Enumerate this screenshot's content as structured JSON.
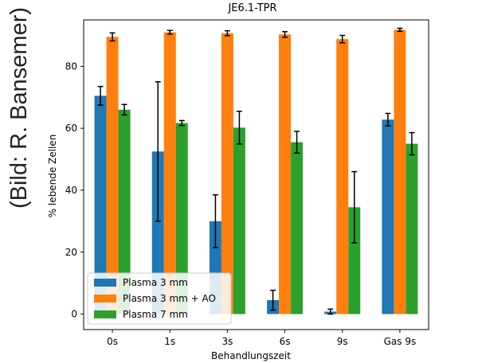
{
  "photo_credit": "(Bild: R. Bansemer)",
  "chart_data": {
    "type": "bar",
    "title": "JE6.1-TPR",
    "xlabel": "Behandlungszeit",
    "ylabel": "% lebende Zellen",
    "categories": [
      "0s",
      "1s",
      "3s",
      "6s",
      "9s",
      "Gas 9s"
    ],
    "ylim": [
      -5,
      95
    ],
    "yticks": [
      0,
      20,
      40,
      60,
      80
    ],
    "legend_position": "lower-left",
    "series": [
      {
        "name": "Plasma 3 mm",
        "color": "#1f77b4",
        "values": [
          70.5,
          52.5,
          30,
          4.5,
          0.8,
          62.8
        ],
        "errors": [
          3,
          22.5,
          8.5,
          3.2,
          0.8,
          2
        ]
      },
      {
        "name": "Plasma 3 mm + AO",
        "color": "#ff7f0e",
        "values": [
          89.5,
          91,
          90.7,
          90.3,
          88.8,
          91.8
        ],
        "errors": [
          1.3,
          0.6,
          0.8,
          0.9,
          1.2,
          0.5
        ]
      },
      {
        "name": "Plasma 7 mm",
        "color": "#2ca02c",
        "values": [
          66,
          61.7,
          60.2,
          55.5,
          34.5,
          55
        ],
        "errors": [
          1.7,
          0.8,
          5.3,
          3.5,
          11.5,
          3.6
        ]
      }
    ]
  }
}
